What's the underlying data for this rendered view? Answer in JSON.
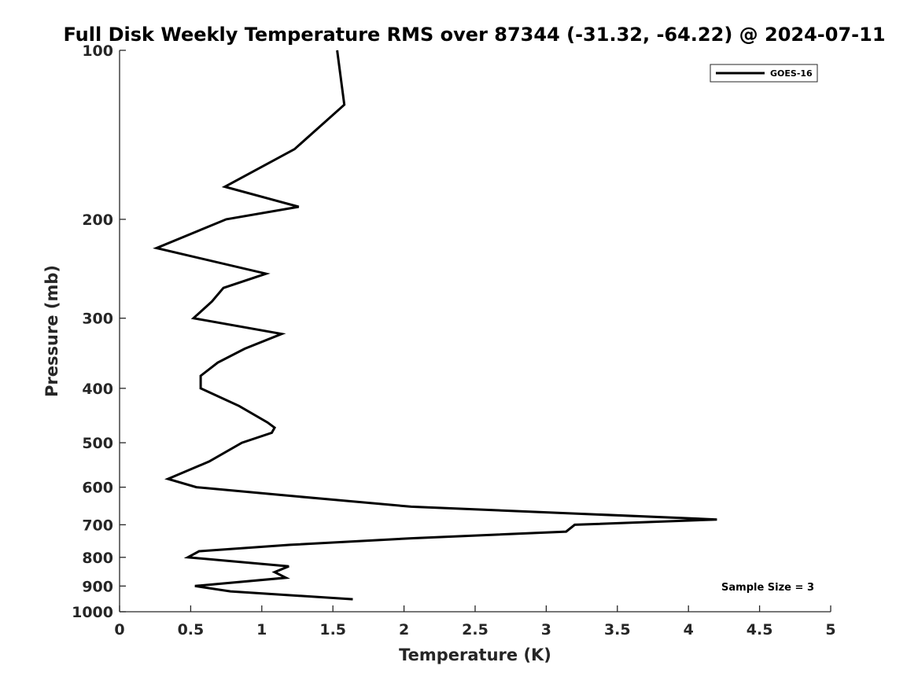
{
  "chart_data": {
    "type": "line",
    "title": "Full Disk Weekly Temperature RMS over 87344 (-31.32, -64.22) @ 2024-07-11",
    "xlabel": "Temperature (K)",
    "ylabel": "Pressure (mb)",
    "xlim": [
      0,
      5
    ],
    "ylim": [
      1000,
      100
    ],
    "yscale": "log",
    "y_reversed": true,
    "x_ticks": [
      "0",
      "0.5",
      "1",
      "1.5",
      "2",
      "2.5",
      "3",
      "3.5",
      "4",
      "4.5",
      "5"
    ],
    "y_ticks": [
      "100",
      "200",
      "300",
      "400",
      "500",
      "600",
      "700",
      "800",
      "900",
      "1000"
    ],
    "grid": false,
    "legend_placement": "top-right",
    "annotation": "Sample Size = 3",
    "series": [
      {
        "name": "GOES-16",
        "color": "#000000",
        "points": [
          [
            1.53,
            100
          ],
          [
            1.58,
            125
          ],
          [
            1.23,
            150
          ],
          [
            0.74,
            175
          ],
          [
            1.26,
            190
          ],
          [
            0.75,
            200
          ],
          [
            0.26,
            225
          ],
          [
            1.03,
            250
          ],
          [
            0.73,
            265
          ],
          [
            0.65,
            280
          ],
          [
            0.52,
            300
          ],
          [
            1.14,
            320
          ],
          [
            0.88,
            340
          ],
          [
            0.69,
            360
          ],
          [
            0.57,
            380
          ],
          [
            0.57,
            400
          ],
          [
            0.84,
            430
          ],
          [
            1.04,
            460
          ],
          [
            1.09,
            470
          ],
          [
            1.07,
            480
          ],
          [
            0.86,
            500
          ],
          [
            0.63,
            540
          ],
          [
            0.34,
            580
          ],
          [
            0.54,
            600
          ],
          [
            1.15,
            620
          ],
          [
            2.05,
            650
          ],
          [
            4.2,
            685
          ],
          [
            3.2,
            700
          ],
          [
            3.14,
            720
          ],
          [
            2.05,
            740
          ],
          [
            1.2,
            760
          ],
          [
            0.56,
            780
          ],
          [
            0.48,
            800
          ],
          [
            1.19,
            830
          ],
          [
            1.09,
            850
          ],
          [
            1.17,
            870
          ],
          [
            0.53,
            900
          ],
          [
            0.78,
            920
          ],
          [
            1.64,
            950
          ]
        ]
      }
    ]
  }
}
